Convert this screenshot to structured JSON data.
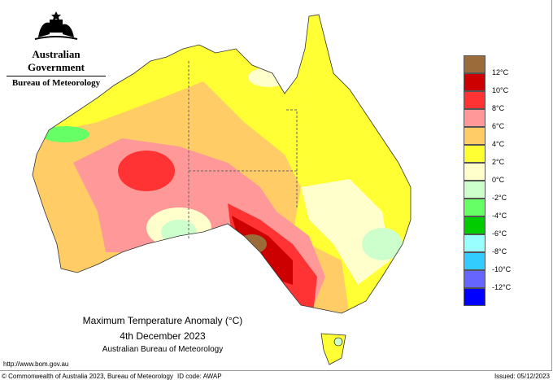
{
  "header": {
    "government": "Australian Government",
    "agency": "Bureau of Meteorology"
  },
  "map": {
    "title": "Maximum Temperature Anomaly (°C)",
    "date": "4th December 2023",
    "source": "Australian Bureau of Meteorology",
    "region": "Australia"
  },
  "legend": {
    "colors": [
      "#9c6b3a",
      "#cc0000",
      "#ff3333",
      "#ff9999",
      "#ffcc66",
      "#ffff33",
      "#ffffcc",
      "#ccffcc",
      "#66ff66",
      "#00cc00",
      "#99ffff",
      "#33ccff",
      "#6666ff",
      "#0000ff"
    ],
    "labels": [
      "12°C",
      "10°C",
      "8°C",
      "6°C",
      "4°C",
      "2°C",
      "0°C",
      "-2°C",
      "-4°C",
      "-6°C",
      "-8°C",
      "-10°C",
      "-12°C"
    ]
  },
  "footer": {
    "url": "http://www.bom.gov.au",
    "copyright": "© Commonwealth of Australia 2023, Bureau of Meteorology",
    "id_code": "ID code: AWAP",
    "issued": "Issued: 05/12/2023"
  }
}
